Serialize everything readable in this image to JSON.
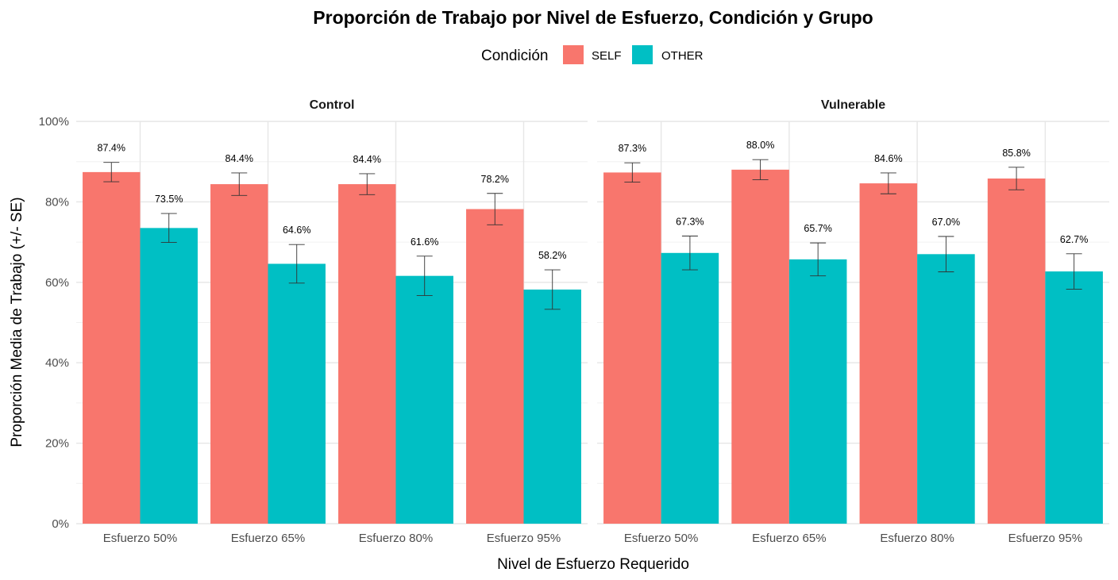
{
  "chart_data": {
    "type": "bar",
    "title": "Proporción de Trabajo por Nivel de Esfuerzo, Condición y Grupo",
    "xlabel": "Nivel de Esfuerzo Requerido",
    "ylabel": "Proporción Media de Trabajo (+/- SE)",
    "ylim": [
      0,
      100
    ],
    "yticks": [
      0,
      20,
      40,
      60,
      80,
      100
    ],
    "ytick_labels": [
      "0%",
      "20%",
      "40%",
      "60%",
      "80%",
      "100%"
    ],
    "grid": true,
    "legend": {
      "title": "Condición",
      "position": "top",
      "entries": [
        {
          "name": "SELF",
          "color": "#F8766D"
        },
        {
          "name": "OTHER",
          "color": "#00BFC4"
        }
      ]
    },
    "categories": [
      "Esfuerzo 50%",
      "Esfuerzo 65%",
      "Esfuerzo 80%",
      "Esfuerzo 95%"
    ],
    "panels": [
      {
        "name": "Control",
        "series": [
          {
            "name": "SELF",
            "values": [
              87.4,
              84.4,
              84.4,
              78.2
            ],
            "se": [
              2.4,
              2.8,
              2.6,
              3.9
            ],
            "labels": [
              "87.4%",
              "84.4%",
              "84.4%",
              "78.2%"
            ]
          },
          {
            "name": "OTHER",
            "values": [
              73.5,
              64.6,
              61.6,
              58.2
            ],
            "se": [
              3.6,
              4.8,
              4.9,
              4.9
            ],
            "labels": [
              "73.5%",
              "64.6%",
              "61.6%",
              "58.2%"
            ]
          }
        ]
      },
      {
        "name": "Vulnerable",
        "series": [
          {
            "name": "SELF",
            "values": [
              87.3,
              88.0,
              84.6,
              85.8
            ],
            "se": [
              2.4,
              2.5,
              2.6,
              2.8
            ],
            "labels": [
              "87.3%",
              "88.0%",
              "84.6%",
              "85.8%"
            ]
          },
          {
            "name": "OTHER",
            "values": [
              67.3,
              65.7,
              67.0,
              62.7
            ],
            "se": [
              4.2,
              4.1,
              4.4,
              4.4
            ],
            "labels": [
              "67.3%",
              "65.7%",
              "67.0%",
              "62.7%"
            ]
          }
        ]
      }
    ]
  }
}
